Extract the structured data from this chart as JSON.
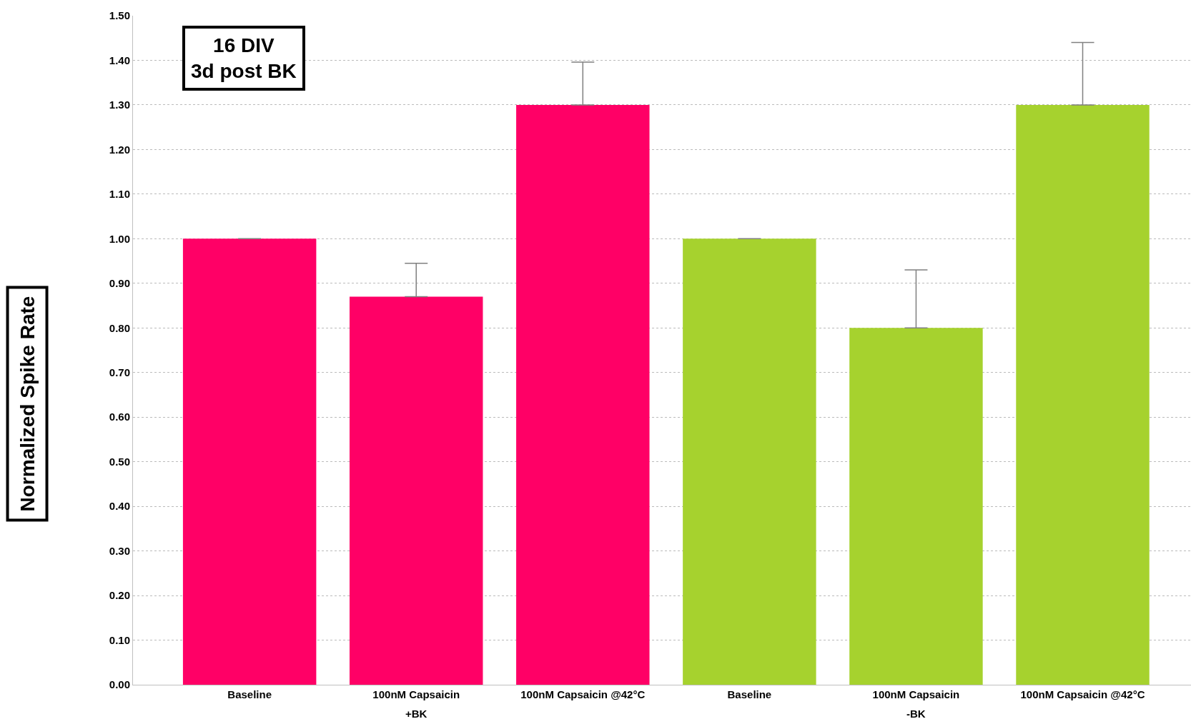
{
  "chart_data": {
    "type": "bar",
    "title": "16 DIV\n3d post BK",
    "ylabel": "Normalized Spike Rate",
    "categories": [
      "Baseline",
      "100nM Capsaicin",
      "100nM Capsaicin @42°C",
      "Baseline",
      "100nM Capsaicin",
      "100nM Capsaicin @42°C"
    ],
    "values": [
      1.0,
      0.87,
      1.3,
      1.0,
      0.8,
      1.3
    ],
    "colors": [
      "#ff0066",
      "#ff0066",
      "#ff0066",
      "#a6d22e",
      "#a6d22e",
      "#a6d22e"
    ],
    "errors": [
      [
        1.0,
        1.0
      ],
      [
        0.87,
        0.945
      ],
      [
        1.3,
        1.396
      ],
      [
        1.0,
        1.0
      ],
      [
        0.8,
        0.93
      ],
      [
        1.3,
        1.44
      ]
    ],
    "annotations": [
      "+BK",
      "-BK"
    ],
    "ylim": [
      0,
      1.5
    ],
    "yticks": [
      {
        "value": 0,
        "label": "0.00"
      },
      {
        "value": 0.1,
        "label": "0.10"
      },
      {
        "value": 0.2,
        "label": "0.20"
      },
      {
        "value": 0.3,
        "label": "0.30"
      },
      {
        "value": 0.4,
        "label": "0.40"
      },
      {
        "value": 0.5,
        "label": "0.50"
      },
      {
        "value": 0.6,
        "label": "0.60"
      },
      {
        "value": 0.7,
        "label": "0.70"
      },
      {
        "value": 0.8,
        "label": "0.80"
      },
      {
        "value": 0.9,
        "label": "0.90"
      },
      {
        "value": 1.0,
        "label": "1.00"
      },
      {
        "value": 1.1,
        "label": "1.10"
      },
      {
        "value": 1.2,
        "label": "1.20"
      },
      {
        "value": 1.3,
        "label": "1.30"
      },
      {
        "value": 1.4,
        "label": "1.40"
      },
      {
        "value": 1.5,
        "label": "1.50"
      }
    ],
    "grid": "y",
    "legend": false
  }
}
